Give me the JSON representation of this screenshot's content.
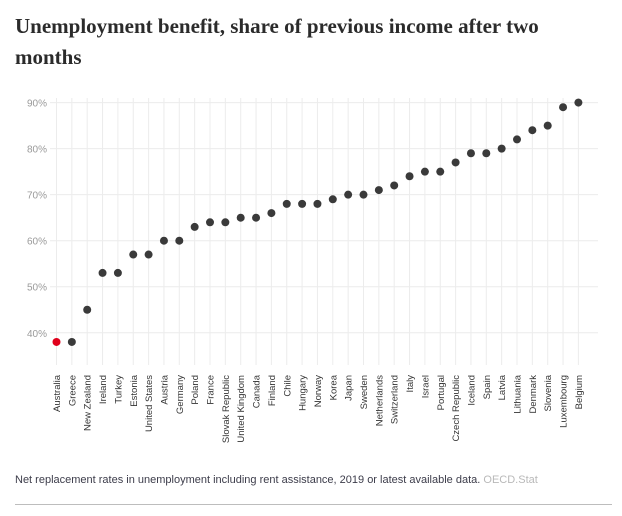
{
  "chart_data": {
    "type": "scatter",
    "title": "Unemployment benefit, share of previous income after two months",
    "xlabel": "",
    "ylabel": "",
    "ylim": [
      33,
      91
    ],
    "yticks": [
      40,
      50,
      60,
      70,
      80,
      90
    ],
    "ytick_labels": [
      "40%",
      "50%",
      "60%",
      "70%",
      "80%",
      "90%"
    ],
    "grid": true,
    "highlight_color": "#e0001b",
    "point_color": "#3a3a3a",
    "categories": [
      "Australia",
      "Greece",
      "New Zealand",
      "Ireland",
      "Turkey",
      "Estonia",
      "United States",
      "Austria",
      "Germany",
      "Poland",
      "France",
      "Slovak Republic",
      "United Kingdom",
      "Canada",
      "Finland",
      "Chile",
      "Hungary",
      "Norway",
      "Korea",
      "Japan",
      "Sweden",
      "Netherlands",
      "Switzerland",
      "Italy",
      "Israel",
      "Portugal",
      "Czech Republic",
      "Iceland",
      "Spain",
      "Latvia",
      "Lithuania",
      "Denmark",
      "Slovenia",
      "Luxembourg",
      "Belgium"
    ],
    "values": [
      38,
      38,
      45,
      53,
      53,
      57,
      57,
      60,
      60,
      63,
      64,
      64,
      65,
      65,
      66,
      68,
      68,
      68,
      69,
      70,
      70,
      71,
      72,
      74,
      75,
      75,
      77,
      79,
      79,
      80,
      82,
      84,
      85,
      89,
      90
    ],
    "highlighted": [
      "Australia"
    ]
  },
  "caption": {
    "text": "Net replacement rates in unemployment including rent assistance, 2019 or latest available data.",
    "source": "OECD.Stat"
  }
}
